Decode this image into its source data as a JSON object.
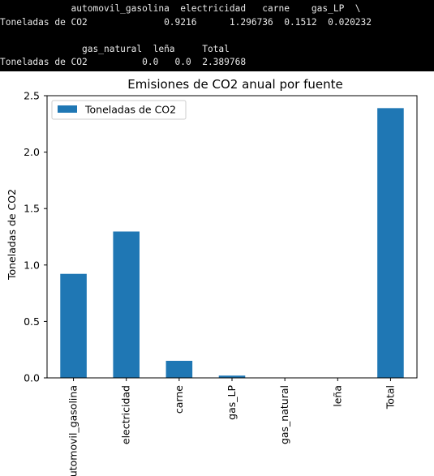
{
  "console": {
    "lines": [
      "             automovil_gasolina  electricidad   carne    gas_LP  \\",
      "Toneladas de CO2              0.9216      1.296736  0.1512  0.020232",
      "",
      "               gas_natural  leña     Total",
      "Toneladas de CO2          0.0   0.0  2.389768"
    ]
  },
  "chart_data": {
    "type": "bar",
    "title": "Emisiones de CO2 anual por fuente",
    "xlabel": "",
    "ylabel": "Toneladas de CO2",
    "categories": [
      "automovil_gasolina",
      "electricidad",
      "carne",
      "gas_LP",
      "gas_natural",
      "leña",
      "Total"
    ],
    "series": [
      {
        "name": "Toneladas de CO2",
        "values": [
          0.9216,
          1.296736,
          0.1512,
          0.020232,
          0.0,
          0.0,
          2.389768
        ],
        "color": "#1f77b4"
      }
    ],
    "yticks": [
      "0.0",
      "0.5",
      "1.0",
      "1.5",
      "2.0",
      "2.5"
    ],
    "ylim": [
      0,
      2.5
    ],
    "grid": false,
    "legend_position": "upper-left"
  }
}
